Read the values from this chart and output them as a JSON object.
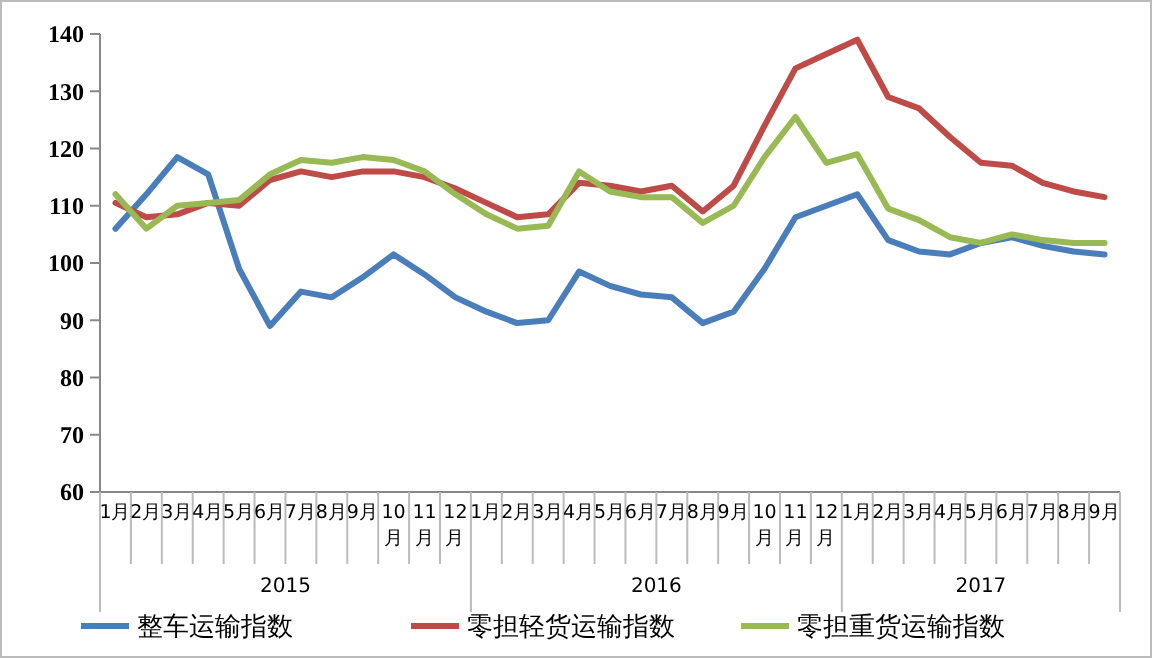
{
  "chart_data": {
    "type": "line",
    "categories": [
      "1月",
      "2月",
      "3月",
      "4月",
      "5月",
      "6月",
      "7月",
      "8月",
      "9月",
      "10月",
      "11月",
      "12月",
      "1月",
      "2月",
      "3月",
      "4月",
      "5月",
      "6月",
      "7月",
      "8月",
      "9月",
      "10月",
      "11月",
      "12月",
      "1月",
      "2月",
      "3月",
      "4月",
      "5月",
      "6月",
      "7月",
      "8月",
      "9月"
    ],
    "ylim": [
      60,
      140
    ],
    "yticks": [
      60,
      70,
      80,
      90,
      100,
      110,
      120,
      130,
      140
    ],
    "grid": false,
    "legend": "bottom",
    "line_style": "solid",
    "annotations": [
      "2015",
      "2016",
      "2017"
    ],
    "series": [
      {
        "name": "整车运输指数",
        "color": "#4a7ebb",
        "values": [
          106,
          112,
          118.5,
          115.5,
          99,
          89,
          95,
          94,
          97.5,
          101.5,
          98,
          94,
          91.5,
          89.5,
          90,
          98.5,
          96,
          94.5,
          94,
          89.5,
          91.5,
          99,
          108,
          110,
          112,
          104,
          102,
          101.5,
          103.5,
          104.5,
          103,
          102,
          101.5
        ]
      },
      {
        "name": "零担轻货运输指数",
        "color": "#be4b48",
        "values": [
          110.5,
          108,
          108.5,
          110.5,
          110,
          114.5,
          116,
          115,
          116,
          116,
          115,
          113,
          110.5,
          108,
          108.5,
          114,
          113.5,
          112.5,
          113.5,
          109,
          113.5,
          124,
          134,
          136.5,
          139,
          129,
          127,
          122,
          117.5,
          117,
          114,
          112.5,
          111.5
        ]
      },
      {
        "name": "零担重货运输指数",
        "color": "#98b954",
        "values": [
          112,
          106,
          110,
          110.5,
          111,
          115.5,
          118,
          117.5,
          118.5,
          118,
          116,
          112,
          108.5,
          106,
          106.5,
          116,
          112.5,
          111.5,
          111.5,
          107,
          110,
          118.5,
          125.5,
          117.5,
          119,
          109.5,
          107.5,
          104.5,
          103.5,
          105,
          104,
          103.5,
          103.5
        ]
      }
    ]
  }
}
